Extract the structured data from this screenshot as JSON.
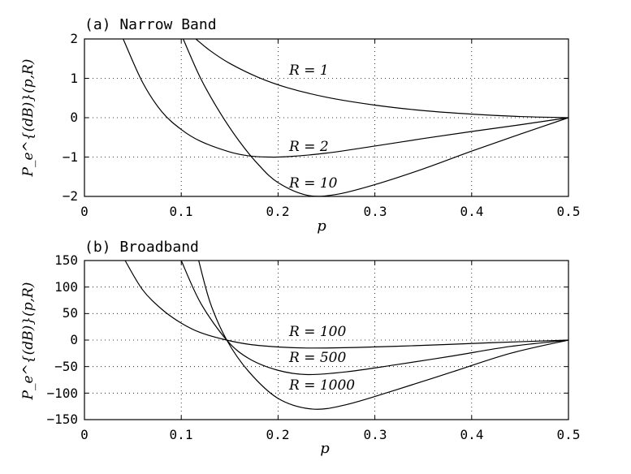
{
  "chart_data": [
    {
      "type": "line",
      "title": "(a) Narrow Band",
      "xlabel": "p",
      "ylabel": "P_e^{(dB)}(p,R)",
      "xlim": [
        0,
        0.5
      ],
      "ylim": [
        -2,
        2
      ],
      "xticks": [
        "0",
        "0.1",
        "0.2",
        "0.3",
        "0.4",
        "0.5"
      ],
      "yticks": [
        "2",
        "1",
        "0",
        "−1",
        "−2"
      ],
      "grid": true,
      "series": [
        {
          "name": "R = 1",
          "x": [
            0.115,
            0.13,
            0.15,
            0.18,
            0.21,
            0.25,
            0.3,
            0.35,
            0.4,
            0.45,
            0.5
          ],
          "y": [
            2,
            1.7,
            1.38,
            1.02,
            0.76,
            0.52,
            0.32,
            0.18,
            0.09,
            0.03,
            0
          ]
        },
        {
          "name": "R = 2",
          "x": [
            0.04,
            0.06,
            0.08,
            0.1,
            0.12,
            0.15,
            0.17,
            0.19,
            0.21,
            0.25,
            0.3,
            0.35,
            0.4,
            0.45,
            0.5
          ],
          "y": [
            2,
            0.9,
            0.15,
            -0.3,
            -0.6,
            -0.87,
            -0.97,
            -1,
            -0.99,
            -0.9,
            -0.72,
            -0.53,
            -0.35,
            -0.18,
            0
          ]
        },
        {
          "name": "R = 10",
          "x": [
            0.102,
            0.12,
            0.14,
            0.16,
            0.18,
            0.2,
            0.23,
            0.26,
            0.3,
            0.35,
            0.4,
            0.45,
            0.5
          ],
          "y": [
            2,
            1,
            0.13,
            -0.6,
            -1.2,
            -1.65,
            -1.97,
            -1.95,
            -1.7,
            -1.3,
            -0.85,
            -0.42,
            0
          ]
        }
      ],
      "annotations": [
        "R = 1",
        "R = 2",
        "R = 10"
      ]
    },
    {
      "type": "line",
      "title": "(b) Broadband",
      "xlabel": "p",
      "ylabel": "P_e^{(dB)}(p,R)",
      "xlim": [
        0,
        0.5
      ],
      "ylim": [
        -150,
        150
      ],
      "xticks": [
        "0",
        "0.1",
        "0.2",
        "0.3",
        "0.4",
        "0.5"
      ],
      "yticks": [
        "150",
        "100",
        "50",
        "0",
        "−50",
        "−100",
        "−150"
      ],
      "grid": true,
      "series": [
        {
          "name": "R = 100",
          "x": [
            0.042,
            0.06,
            0.08,
            0.1,
            0.12,
            0.147,
            0.17,
            0.2,
            0.23,
            0.28,
            0.35,
            0.42,
            0.5
          ],
          "y": [
            150,
            95,
            58,
            32,
            14,
            0,
            -8,
            -13,
            -15,
            -14,
            -10,
            -5,
            0
          ]
        },
        {
          "name": "R = 500",
          "x": [
            0.1,
            0.12,
            0.147,
            0.17,
            0.2,
            0.23,
            0.27,
            0.32,
            0.38,
            0.44,
            0.5
          ],
          "y": [
            150,
            70,
            0,
            -35,
            -57,
            -65,
            -60,
            -47,
            -30,
            -12,
            0
          ]
        },
        {
          "name": "R = 1000",
          "x": [
            0.118,
            0.13,
            0.147,
            0.17,
            0.2,
            0.235,
            0.27,
            0.32,
            0.38,
            0.44,
            0.5
          ],
          "y": [
            150,
            70,
            0,
            -60,
            -110,
            -130,
            -122,
            -95,
            -60,
            -25,
            0
          ]
        }
      ],
      "annotations": [
        "R = 100",
        "R = 500",
        "R = 1000"
      ]
    }
  ]
}
